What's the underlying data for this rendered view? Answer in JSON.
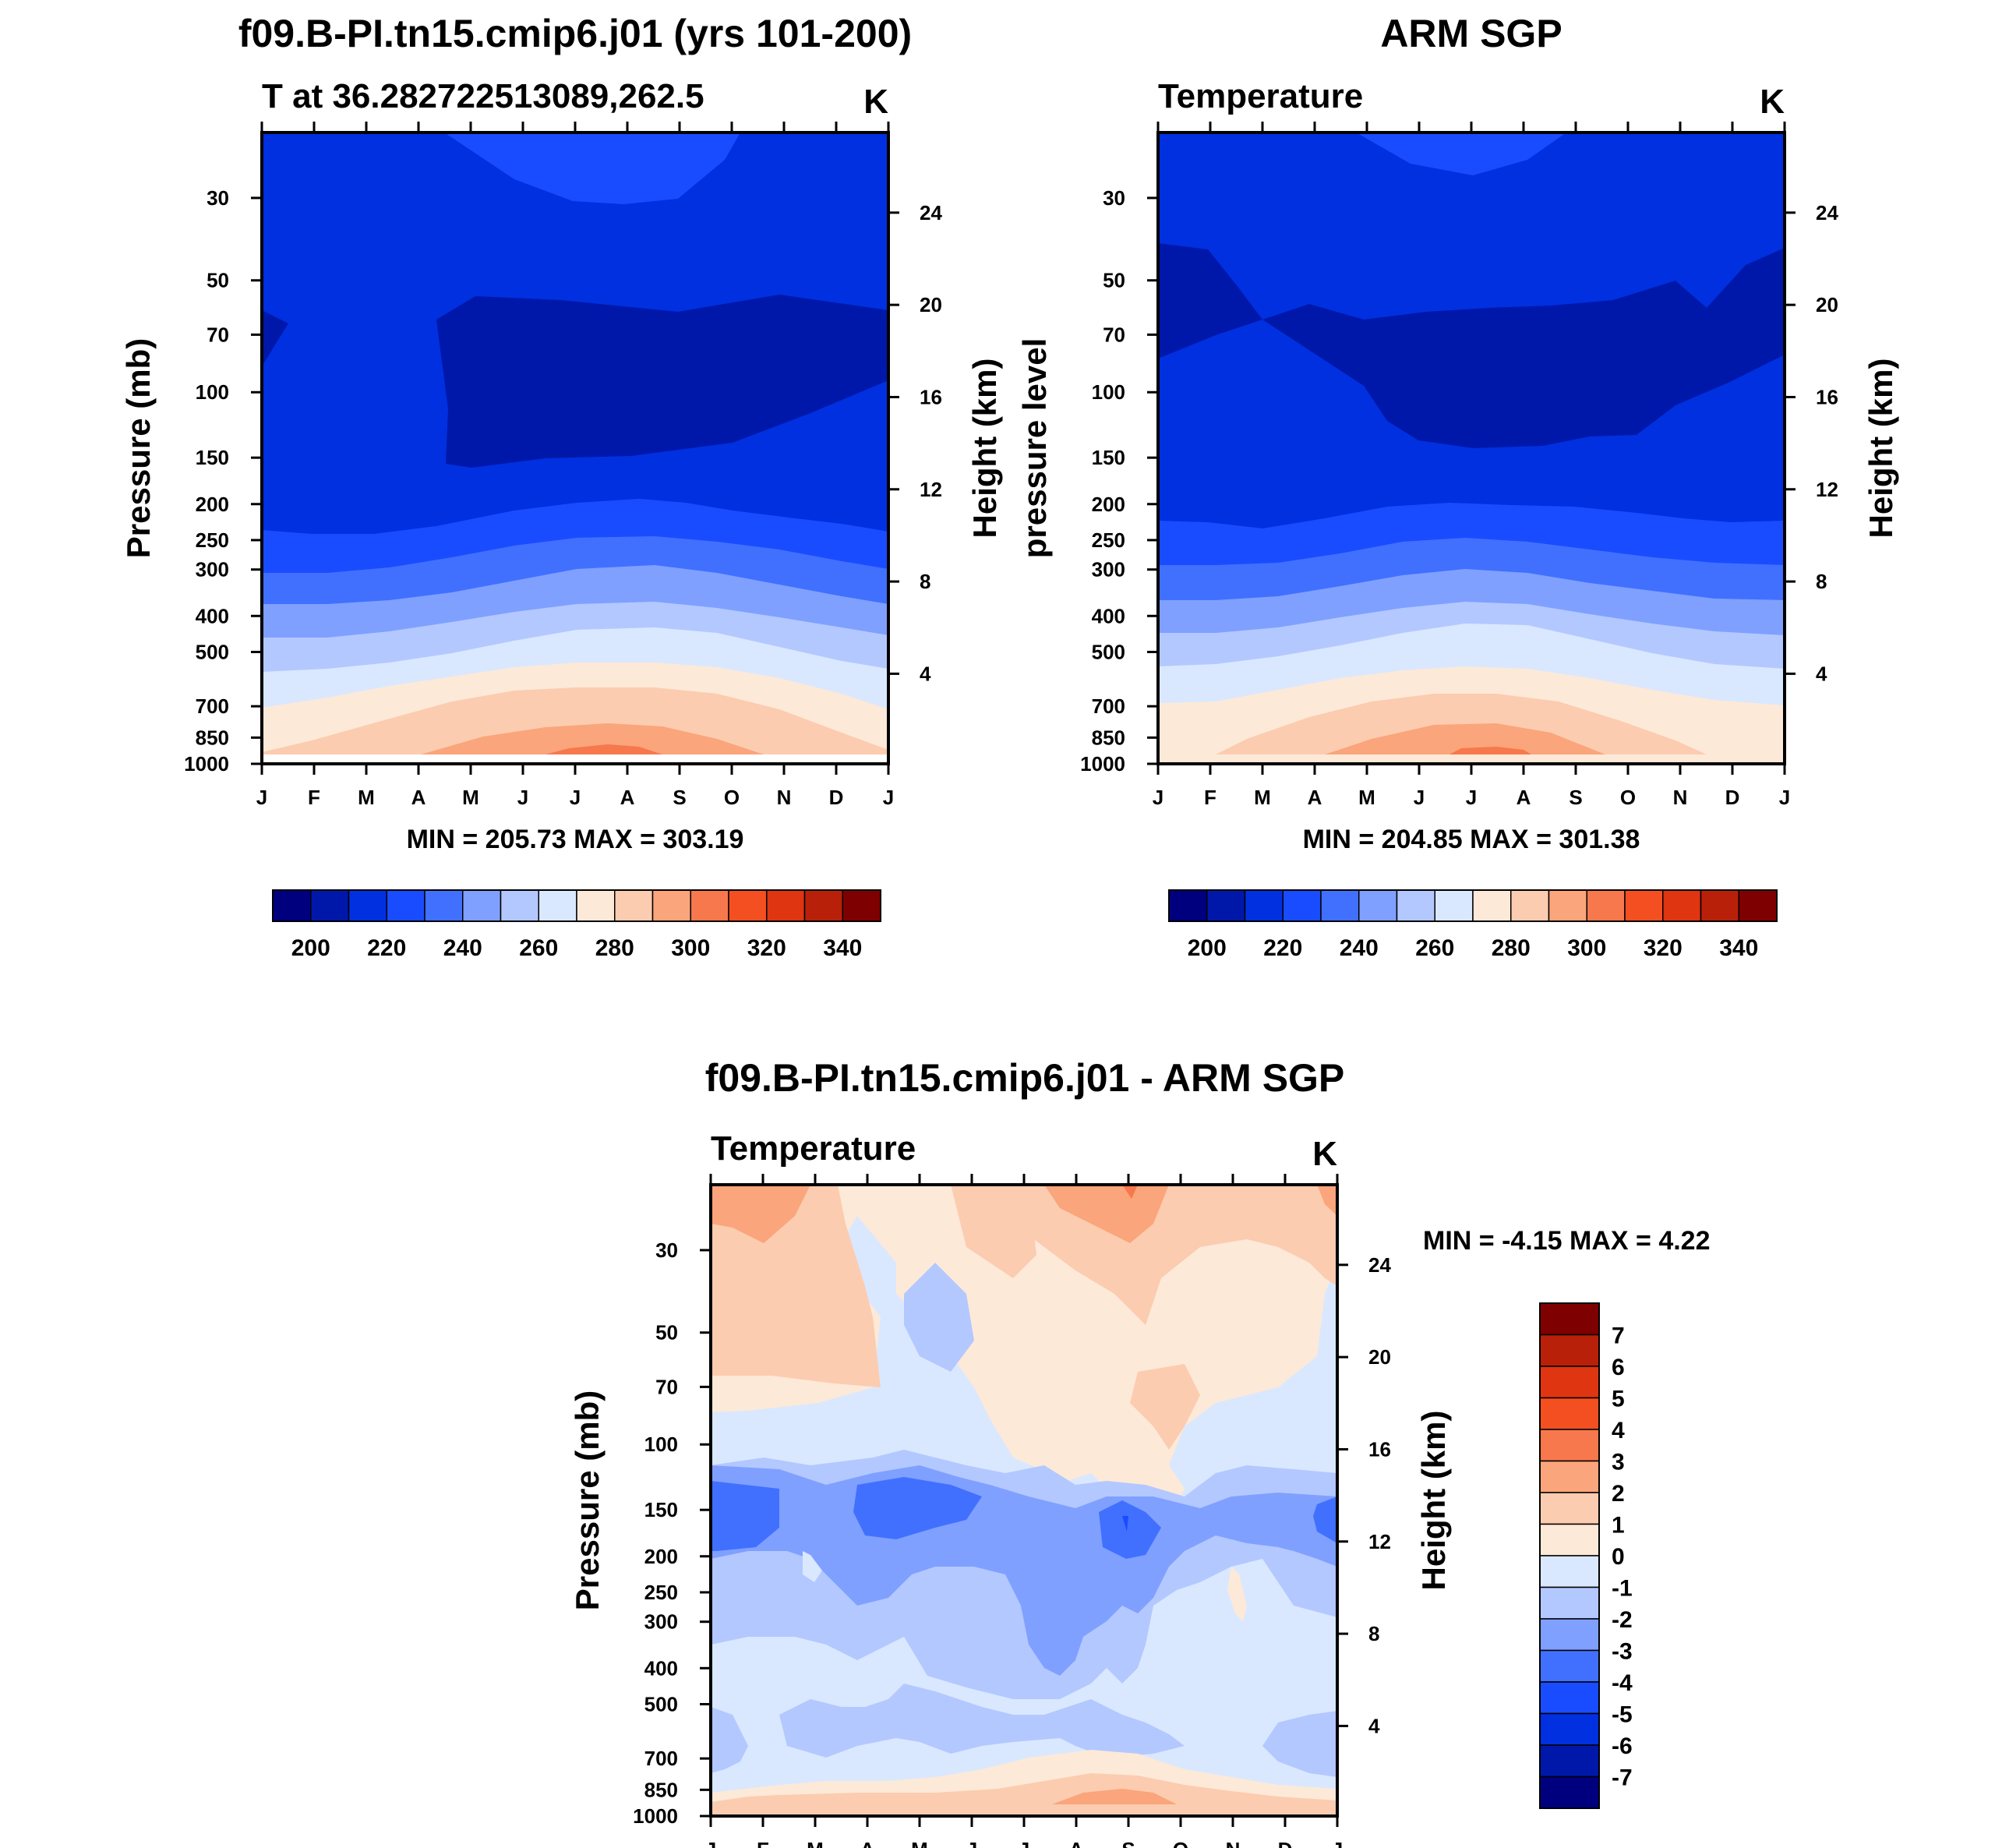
{
  "chart_data": [
    {
      "type": "heatmap",
      "id": "model",
      "title": "f09.B-PI.tn15.cmip6.j01 (yrs 101-200)",
      "subtitle_left": "T at 36.282722513089,262.5",
      "subtitle_right": "K",
      "ylabel": "Pressure (mb)",
      "ylabel_right": "Height (km)",
      "xlabel": "",
      "x_ticks": [
        "J",
        "F",
        "M",
        "A",
        "M",
        "J",
        "J",
        "A",
        "S",
        "O",
        "N",
        "D",
        "J"
      ],
      "y_ticks": [
        30,
        50,
        70,
        100,
        150,
        200,
        250,
        300,
        400,
        500,
        700,
        850,
        1000
      ],
      "y_right_ticks": [
        4,
        8,
        12,
        16,
        20,
        24
      ],
      "ylim": [
        20,
        1000
      ],
      "min_max_text": "MIN = 205.73 MAX = 303.19",
      "colorbar_labels": [
        "200",
        "220",
        "240",
        "260",
        "280",
        "300",
        "320",
        "340"
      ],
      "colorbar_colors": [
        "#00007f",
        "#0018aa",
        "#0030e0",
        "#1a4cff",
        "#4170ff",
        "#7fa0ff",
        "#b3c8ff",
        "#d9e8ff",
        "#fde9d8",
        "#fcccb0",
        "#faa57b",
        "#f7784d",
        "#f44f20",
        "#df3510",
        "#b8200a",
        "#7f0000"
      ]
    },
    {
      "type": "heatmap",
      "id": "obs",
      "title": "ARM SGP",
      "subtitle_left": "Temperature",
      "subtitle_right": "K",
      "ylabel": "pressure level",
      "ylabel_right": "Height (km)",
      "xlabel": "",
      "x_ticks": [
        "J",
        "F",
        "M",
        "A",
        "M",
        "J",
        "J",
        "A",
        "S",
        "O",
        "N",
        "D",
        "J"
      ],
      "y_ticks": [
        30,
        50,
        70,
        100,
        150,
        200,
        250,
        300,
        400,
        500,
        700,
        850,
        1000
      ],
      "y_right_ticks": [
        4,
        8,
        12,
        16,
        20,
        24
      ],
      "ylim": [
        20,
        1000
      ],
      "min_max_text": "MIN = 204.85 MAX = 301.38",
      "colorbar_labels": [
        "200",
        "220",
        "240",
        "260",
        "280",
        "300",
        "320",
        "340"
      ],
      "colorbar_colors": [
        "#00007f",
        "#0018aa",
        "#0030e0",
        "#1a4cff",
        "#4170ff",
        "#7fa0ff",
        "#b3c8ff",
        "#d9e8ff",
        "#fde9d8",
        "#fcccb0",
        "#faa57b",
        "#f7784d",
        "#f44f20",
        "#df3510",
        "#b8200a",
        "#7f0000"
      ]
    },
    {
      "type": "heatmap",
      "id": "diff",
      "title": "f09.B-PI.tn15.cmip6.j01 - ARM SGP",
      "subtitle_left": "Temperature",
      "subtitle_right": "K",
      "ylabel": "Pressure (mb)",
      "ylabel_right": "Height (km)",
      "xlabel": "",
      "x_ticks": [
        "J",
        "F",
        "M",
        "A",
        "M",
        "J",
        "J",
        "A",
        "S",
        "O",
        "N",
        "D",
        "J"
      ],
      "y_ticks": [
        30,
        50,
        70,
        100,
        150,
        200,
        250,
        300,
        400,
        500,
        700,
        850,
        1000
      ],
      "y_right_ticks": [
        4,
        8,
        12,
        16,
        20,
        24
      ],
      "ylim": [
        20,
        1000
      ],
      "min_max_text": "MIN =  -4.15 MAX =   4.22",
      "colorbar_labels": [
        "7",
        "6",
        "5",
        "4",
        "3",
        "2",
        "1",
        "0",
        "-1",
        "-2",
        "-3",
        "-4",
        "-5",
        "-6",
        "-7"
      ],
      "colorbar_colors": [
        "#7f0000",
        "#b8200a",
        "#df3510",
        "#f44f20",
        "#f7784d",
        "#faa57b",
        "#fcccb0",
        "#fde9d8",
        "#d9e8ff",
        "#b3c8ff",
        "#7fa0ff",
        "#4170ff",
        "#1a4cff",
        "#0030e0",
        "#0018aa",
        "#00007f"
      ]
    }
  ]
}
